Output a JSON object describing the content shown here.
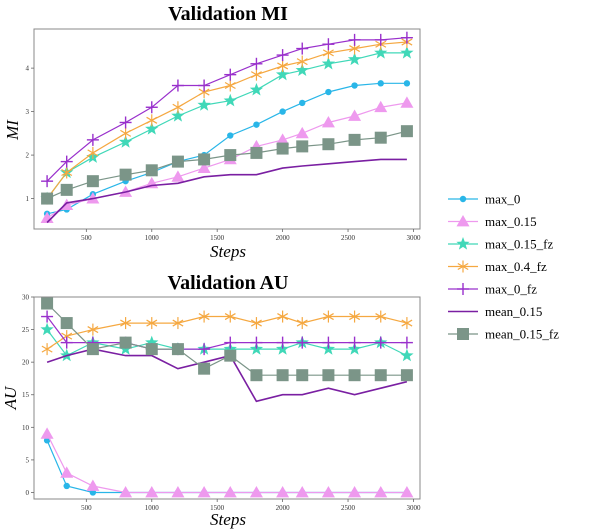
{
  "chart_data": [
    {
      "type": "line",
      "title": "Validation MI",
      "xlabel": "Steps",
      "ylabel": "MI",
      "xlim": [
        100,
        3050
      ],
      "ylim": [
        0.3,
        4.9
      ],
      "x_ticks": [
        500,
        1000,
        1500,
        2000,
        2500,
        3000
      ],
      "y_ticks": [
        1,
        2,
        3,
        4
      ],
      "grid": false,
      "series": [
        {
          "name": "max_0",
          "color": "#29b6e8",
          "marker": "circle",
          "x": [
            200,
            350,
            550,
            800,
            1000,
            1200,
            1400,
            1600,
            1800,
            2000,
            2150,
            2350,
            2550,
            2750,
            2950
          ],
          "y": [
            0.65,
            0.75,
            1.1,
            1.4,
            1.6,
            1.85,
            2.0,
            2.45,
            2.7,
            3.0,
            3.2,
            3.45,
            3.6,
            3.65,
            3.65
          ]
        },
        {
          "name": "max_0.15",
          "color": "#ee99ee",
          "marker": "triangle",
          "x": [
            200,
            350,
            550,
            800,
            1000,
            1200,
            1400,
            1600,
            1800,
            2000,
            2150,
            2350,
            2550,
            2750,
            2950
          ],
          "y": [
            0.55,
            0.85,
            1.0,
            1.15,
            1.35,
            1.5,
            1.7,
            1.9,
            2.2,
            2.35,
            2.5,
            2.75,
            2.9,
            3.1,
            3.2
          ]
        },
        {
          "name": "max_0.15_fz",
          "color": "#40d8b8",
          "marker": "star",
          "x": [
            200,
            350,
            550,
            800,
            1000,
            1200,
            1400,
            1600,
            1800,
            2000,
            2150,
            2350,
            2550,
            2750,
            2950
          ],
          "y": [
            1.0,
            1.6,
            1.95,
            2.3,
            2.6,
            2.9,
            3.15,
            3.25,
            3.5,
            3.85,
            3.95,
            4.1,
            4.2,
            4.35,
            4.35
          ]
        },
        {
          "name": "max_0.4_fz",
          "color": "#f5a841",
          "marker": "tri-star",
          "x": [
            200,
            350,
            550,
            800,
            1000,
            1200,
            1400,
            1600,
            1800,
            2000,
            2150,
            2350,
            2550,
            2750,
            2950
          ],
          "y": [
            1.0,
            1.6,
            2.05,
            2.5,
            2.8,
            3.1,
            3.45,
            3.6,
            3.85,
            4.05,
            4.15,
            4.35,
            4.45,
            4.55,
            4.6
          ]
        },
        {
          "name": "max_0_fz",
          "color": "#9930cc",
          "marker": "plus",
          "x": [
            200,
            350,
            550,
            800,
            1000,
            1200,
            1400,
            1600,
            1800,
            2000,
            2150,
            2350,
            2550,
            2750,
            2950
          ],
          "y": [
            1.4,
            1.85,
            2.35,
            2.75,
            3.1,
            3.6,
            3.6,
            3.85,
            4.1,
            4.3,
            4.45,
            4.55,
            4.65,
            4.65,
            4.7
          ]
        },
        {
          "name": "mean_0.15",
          "color": "#7a1fa2",
          "marker": "none",
          "x": [
            200,
            350,
            550,
            800,
            1000,
            1200,
            1400,
            1600,
            1800,
            2000,
            2150,
            2350,
            2550,
            2750,
            2950
          ],
          "y": [
            0.45,
            0.9,
            1.0,
            1.15,
            1.3,
            1.35,
            1.5,
            1.55,
            1.55,
            1.7,
            1.75,
            1.8,
            1.85,
            1.9,
            1.9
          ]
        },
        {
          "name": "mean_0.15_fz",
          "color": "#7b9588",
          "marker": "square",
          "x": [
            200,
            350,
            550,
            800,
            1000,
            1200,
            1400,
            1600,
            1800,
            2000,
            2150,
            2350,
            2550,
            2750,
            2950
          ],
          "y": [
            1.0,
            1.2,
            1.4,
            1.55,
            1.65,
            1.85,
            1.9,
            2.0,
            2.05,
            2.15,
            2.2,
            2.25,
            2.35,
            2.4,
            2.55
          ]
        }
      ]
    },
    {
      "type": "line",
      "title": "Validation AU",
      "xlabel": "Steps",
      "ylabel": "AU",
      "xlim": [
        100,
        3050
      ],
      "ylim": [
        -1,
        30
      ],
      "x_ticks": [
        500,
        1000,
        1500,
        2000,
        2500,
        3000
      ],
      "y_ticks": [
        0,
        5,
        10,
        15,
        20,
        25,
        30
      ],
      "grid": false,
      "series": [
        {
          "name": "max_0",
          "color": "#29b6e8",
          "marker": "circle",
          "x": [
            200,
            350,
            550,
            800,
            1000,
            1200,
            1400,
            1600,
            1800,
            2000,
            2150,
            2350,
            2550,
            2750,
            2950
          ],
          "y": [
            8,
            1,
            0,
            0,
            0,
            0,
            0,
            0,
            0,
            0,
            0,
            0,
            0,
            0,
            0
          ]
        },
        {
          "name": "max_0.15",
          "color": "#ee99ee",
          "marker": "triangle",
          "x": [
            200,
            350,
            550,
            800,
            1000,
            1200,
            1400,
            1600,
            1800,
            2000,
            2150,
            2350,
            2550,
            2750,
            2950
          ],
          "y": [
            9,
            3,
            1,
            0,
            0,
            0,
            0,
            0,
            0,
            0,
            0,
            0,
            0,
            0,
            0
          ]
        },
        {
          "name": "max_0.15_fz",
          "color": "#40d8b8",
          "marker": "star",
          "x": [
            200,
            350,
            550,
            800,
            1000,
            1200,
            1400,
            1600,
            1800,
            2000,
            2150,
            2350,
            2550,
            2750,
            2950
          ],
          "y": [
            25,
            21,
            23,
            22,
            23,
            22,
            22,
            22,
            22,
            22,
            23,
            22,
            22,
            23,
            21
          ]
        },
        {
          "name": "max_0.4_fz",
          "color": "#f5a841",
          "marker": "tri-star",
          "x": [
            200,
            350,
            550,
            800,
            1000,
            1200,
            1400,
            1600,
            1800,
            2000,
            2150,
            2350,
            2550,
            2750,
            2950
          ],
          "y": [
            22,
            24,
            25,
            26,
            26,
            26,
            27,
            27,
            26,
            27,
            26,
            27,
            27,
            27,
            26
          ]
        },
        {
          "name": "max_0_fz",
          "color": "#9930cc",
          "marker": "plus",
          "x": [
            200,
            350,
            550,
            800,
            1000,
            1200,
            1400,
            1600,
            1800,
            2000,
            2150,
            2350,
            2550,
            2750,
            2950
          ],
          "y": [
            27,
            23,
            23,
            23,
            22,
            22,
            22,
            23,
            23,
            23,
            23,
            23,
            23,
            23,
            23
          ]
        },
        {
          "name": "mean_0.15",
          "color": "#7a1fa2",
          "marker": "none",
          "x": [
            200,
            350,
            550,
            800,
            1000,
            1200,
            1400,
            1600,
            1800,
            2000,
            2150,
            2350,
            2550,
            2750,
            2950
          ],
          "y": [
            20,
            21,
            22,
            21,
            21,
            19,
            20,
            21,
            14,
            15,
            15,
            16,
            15,
            16,
            17
          ]
        },
        {
          "name": "mean_0.15_fz",
          "color": "#7b9588",
          "marker": "square",
          "x": [
            200,
            350,
            550,
            800,
            1000,
            1200,
            1400,
            1600,
            1800,
            2000,
            2150,
            2350,
            2550,
            2750,
            2950
          ],
          "y": [
            29,
            26,
            22,
            23,
            22,
            22,
            19,
            21,
            18,
            18,
            18,
            18,
            18,
            18,
            18
          ]
        }
      ]
    }
  ],
  "legend": {
    "placement": "right",
    "entries": [
      "max_0",
      "max_0.15",
      "max_0.15_fz",
      "max_0.4_fz",
      "max_0_fz",
      "mean_0.15",
      "mean_0.15_fz"
    ]
  }
}
